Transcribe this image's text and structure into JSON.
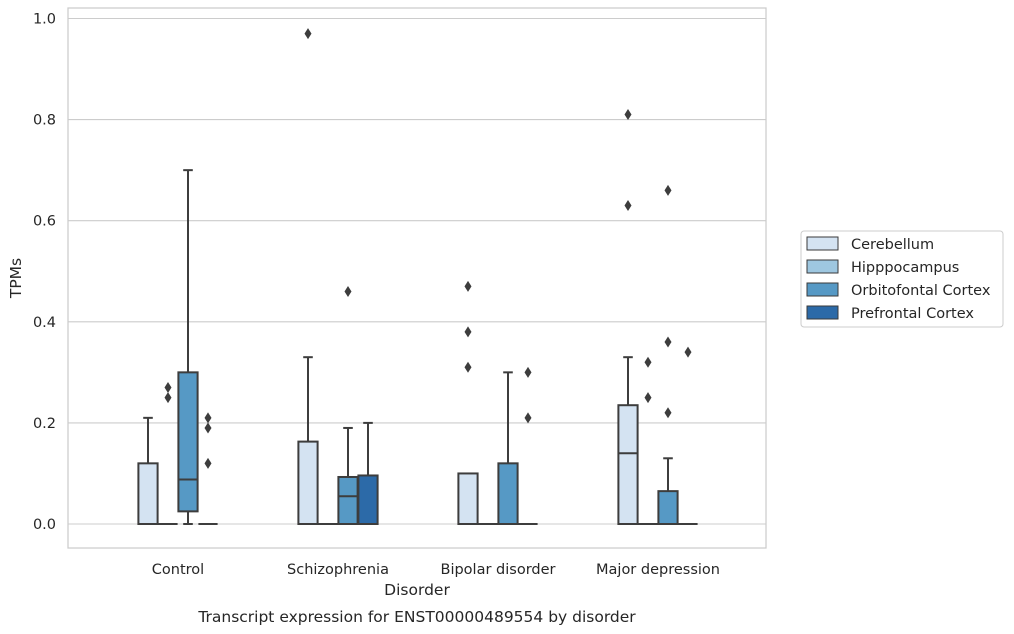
{
  "chart_data": {
    "type": "box",
    "title": "",
    "caption": "Transcript expression for ENST00000489554 by disorder",
    "xlabel": "Disorder",
    "ylabel": "TPMs",
    "ylim": [
      -0.045,
      1.02
    ],
    "yticks": [
      "0.0",
      "0.2",
      "0.4",
      "0.6",
      "0.8",
      "1.0"
    ],
    "ytick_values": [
      0,
      0.2,
      0.4,
      0.6,
      0.8,
      1.0
    ],
    "grid": "horizontal",
    "legend_position": "right",
    "categories": [
      "Control",
      "Schizophrenia",
      "Bipolar disorder",
      "Major depression"
    ],
    "series": [
      {
        "name": "Cerebellum",
        "color": "#d4e3f2",
        "boxes": [
          {
            "whislo": 0,
            "q1": 0,
            "med": 0,
            "q3": 0.12,
            "whishi": 0.21,
            "fliers": []
          },
          {
            "whislo": 0,
            "q1": 0,
            "med": 0,
            "q3": 0.163,
            "whishi": 0.33,
            "fliers": [
              0.97
            ]
          },
          {
            "whislo": 0,
            "q1": 0,
            "med": 0,
            "q3": 0.1,
            "whishi": 0.1,
            "fliers": [
              0.31,
              0.38,
              0.47
            ]
          },
          {
            "whislo": 0,
            "q1": 0,
            "med": 0.14,
            "q3": 0.235,
            "whishi": 0.33,
            "fliers": [
              0.63,
              0.81
            ]
          }
        ]
      },
      {
        "name": "Hipppocampus",
        "color": "#9ec7e0",
        "boxes": [
          {
            "whislo": 0,
            "q1": 0,
            "med": 0,
            "q3": 0,
            "whishi": 0,
            "fliers": [
              0.25,
              0.27
            ]
          },
          {
            "whislo": 0,
            "q1": 0,
            "med": 0,
            "q3": 0,
            "whishi": 0,
            "fliers": []
          },
          {
            "whislo": 0,
            "q1": 0,
            "med": 0,
            "q3": 0,
            "whishi": 0,
            "fliers": []
          },
          {
            "whislo": 0,
            "q1": 0,
            "med": 0,
            "q3": 0,
            "whishi": 0,
            "fliers": [
              0.25,
              0.32
            ]
          }
        ]
      },
      {
        "name": "Orbitofontal Cortex",
        "color": "#5699c5",
        "boxes": [
          {
            "whislo": 0,
            "q1": 0.025,
            "med": 0.088,
            "q3": 0.3,
            "whishi": 0.7,
            "fliers": []
          },
          {
            "whislo": 0,
            "q1": 0,
            "med": 0.055,
            "q3": 0.093,
            "whishi": 0.19,
            "fliers": [
              0.46
            ]
          },
          {
            "whislo": 0,
            "q1": 0,
            "med": 0,
            "q3": 0.12,
            "whishi": 0.3,
            "fliers": []
          },
          {
            "whislo": 0,
            "q1": 0,
            "med": 0,
            "q3": 0.065,
            "whishi": 0.13,
            "fliers": [
              0.22,
              0.36,
              0.66
            ]
          }
        ]
      },
      {
        "name": "Prefrontal Cortex",
        "color": "#2c6aa8",
        "boxes": [
          {
            "whislo": 0,
            "q1": 0,
            "med": 0,
            "q3": 0,
            "whishi": 0,
            "fliers": [
              0.12,
              0.19,
              0.21
            ]
          },
          {
            "whislo": 0,
            "q1": 0,
            "med": 0,
            "q3": 0.096,
            "whishi": 0.2,
            "fliers": []
          },
          {
            "whislo": 0,
            "q1": 0,
            "med": 0,
            "q3": 0,
            "whishi": 0,
            "fliers": [
              0.21,
              0.3
            ]
          },
          {
            "whislo": 0,
            "q1": 0,
            "med": 0,
            "q3": 0,
            "whishi": 0,
            "fliers": [
              0.34
            ]
          }
        ]
      }
    ]
  }
}
